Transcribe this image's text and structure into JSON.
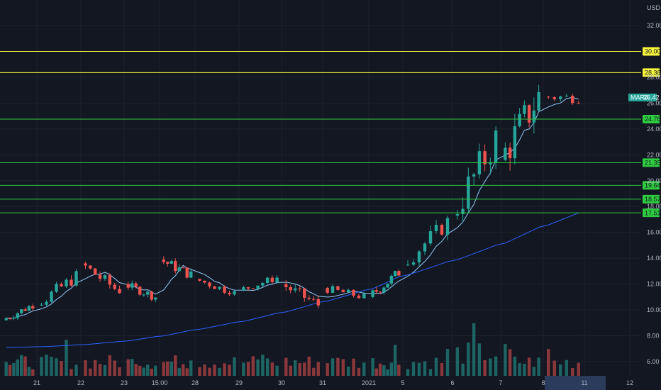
{
  "chart_data": {
    "type": "candlestick",
    "symbol": "MARA",
    "currency": "USD",
    "last_price": "26.42",
    "colors": {
      "up": "#26a69a",
      "down": "#ef5350",
      "ma": "#2962ff",
      "ma_short": "#90caf9",
      "resistance": "#f5f53d",
      "support": "#2ecc40",
      "last": "#26a69a",
      "background": "#131722",
      "grid": "#1e222d"
    },
    "y_ticks": [
      "6.00",
      "8.00",
      "10.00",
      "12.00",
      "14.00",
      "16.00",
      "18.00",
      "20.00",
      "22.00",
      "24.00",
      "26.00",
      "28.00",
      "32.00"
    ],
    "x_ticks": [
      "21",
      "22",
      "23",
      "15:00",
      "28",
      "29",
      "30",
      "31",
      "2021",
      "5",
      "6",
      "7",
      "8",
      "11",
      "12"
    ],
    "levels": [
      {
        "price": "30.00",
        "kind": "resistance"
      },
      {
        "price": "28.36",
        "kind": "resistance"
      },
      {
        "price": "24.76",
        "kind": "support"
      },
      {
        "price": "21.39",
        "kind": "support"
      },
      {
        "price": "19.64",
        "kind": "support"
      },
      {
        "price": "18.57",
        "kind": "support"
      },
      {
        "price": "17.51",
        "kind": "support"
      }
    ],
    "price_range": [
      5.4,
      33.2
    ],
    "candles_per_day": 8,
    "days": [
      {
        "label": "21",
        "o": 9.2,
        "c": 10.4,
        "h": 10.8,
        "l": 9.0
      },
      {
        "label": "22",
        "o": 10.4,
        "c": 12.6,
        "h": 13.3,
        "l": 10.3
      },
      {
        "label": "23",
        "o": 13.6,
        "c": 11.4,
        "h": 14.1,
        "l": 11.2
      },
      {
        "label": "15:00",
        "o": 12.0,
        "c": 11.0,
        "h": 12.5,
        "l": 10.6
      },
      {
        "label": "28",
        "o": 13.9,
        "c": 12.7,
        "h": 14.8,
        "l": 12.4
      },
      {
        "label": "29",
        "o": 12.4,
        "c": 11.3,
        "h": 12.9,
        "l": 11.1
      },
      {
        "label": "30",
        "o": 11.5,
        "c": 12.5,
        "h": 13.0,
        "l": 11.3
      },
      {
        "label": "31",
        "o": 12.0,
        "c": 10.4,
        "h": 12.6,
        "l": 9.9
      },
      {
        "label": "2021",
        "o": 11.7,
        "c": 11.0,
        "h": 12.4,
        "l": 10.6
      },
      {
        "label": "5",
        "o": 11.0,
        "c": 12.9,
        "h": 13.3,
        "l": 10.8
      },
      {
        "label": "6",
        "o": 13.5,
        "c": 16.8,
        "h": 17.3,
        "l": 13.4
      },
      {
        "label": "7",
        "o": 17.3,
        "c": 23.2,
        "h": 24.2,
        "l": 16.2
      },
      {
        "label": "8",
        "o": 21.6,
        "c": 26.5,
        "h": 28.3,
        "l": 19.6
      },
      {
        "label": "11",
        "o": 26.5,
        "c": 26.4,
        "h": 27.3,
        "l": 24.9
      }
    ],
    "volume_overlay_range": [
      3,
      24
    ]
  }
}
